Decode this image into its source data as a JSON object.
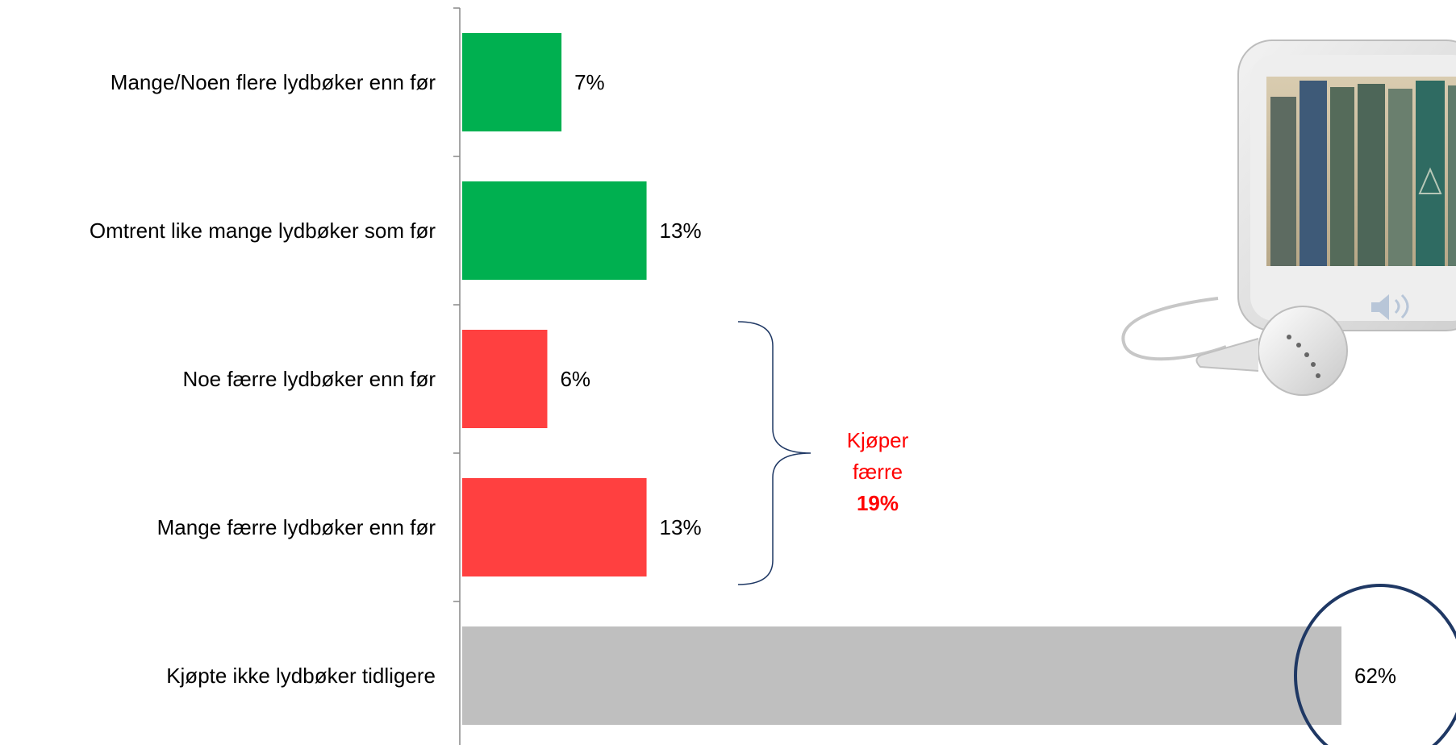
{
  "chart_data": {
    "type": "bar",
    "orientation": "horizontal",
    "categories": [
      "Mange/Noen flere lydbøker enn før",
      "Omtrent like mange lydbøker som før",
      "Noe færre lydbøker enn før",
      "Mange færre lydbøker enn før",
      "Kjøpte ikke lydbøker tidligere"
    ],
    "values": [
      7,
      13,
      6,
      13,
      62
    ],
    "value_labels": [
      "7%",
      "13%",
      "6%",
      "13%",
      "62%"
    ],
    "bar_colors": [
      "#00b050",
      "#00b050",
      "#ff4040",
      "#ff4040",
      "#bfbfbf"
    ],
    "xlim": [
      0,
      62
    ],
    "grid": false,
    "legend": false,
    "annotations": {
      "bracket_label_lines": [
        "Kjøper",
        "færre"
      ],
      "bracket_value": "19%",
      "bracket_color": "#1f3864",
      "bracket_text_color": "#ff0000",
      "highlight_circle_color": "#1f3864"
    }
  },
  "decoration": {
    "device_image_icon": "audio-player-with-books-icon"
  }
}
